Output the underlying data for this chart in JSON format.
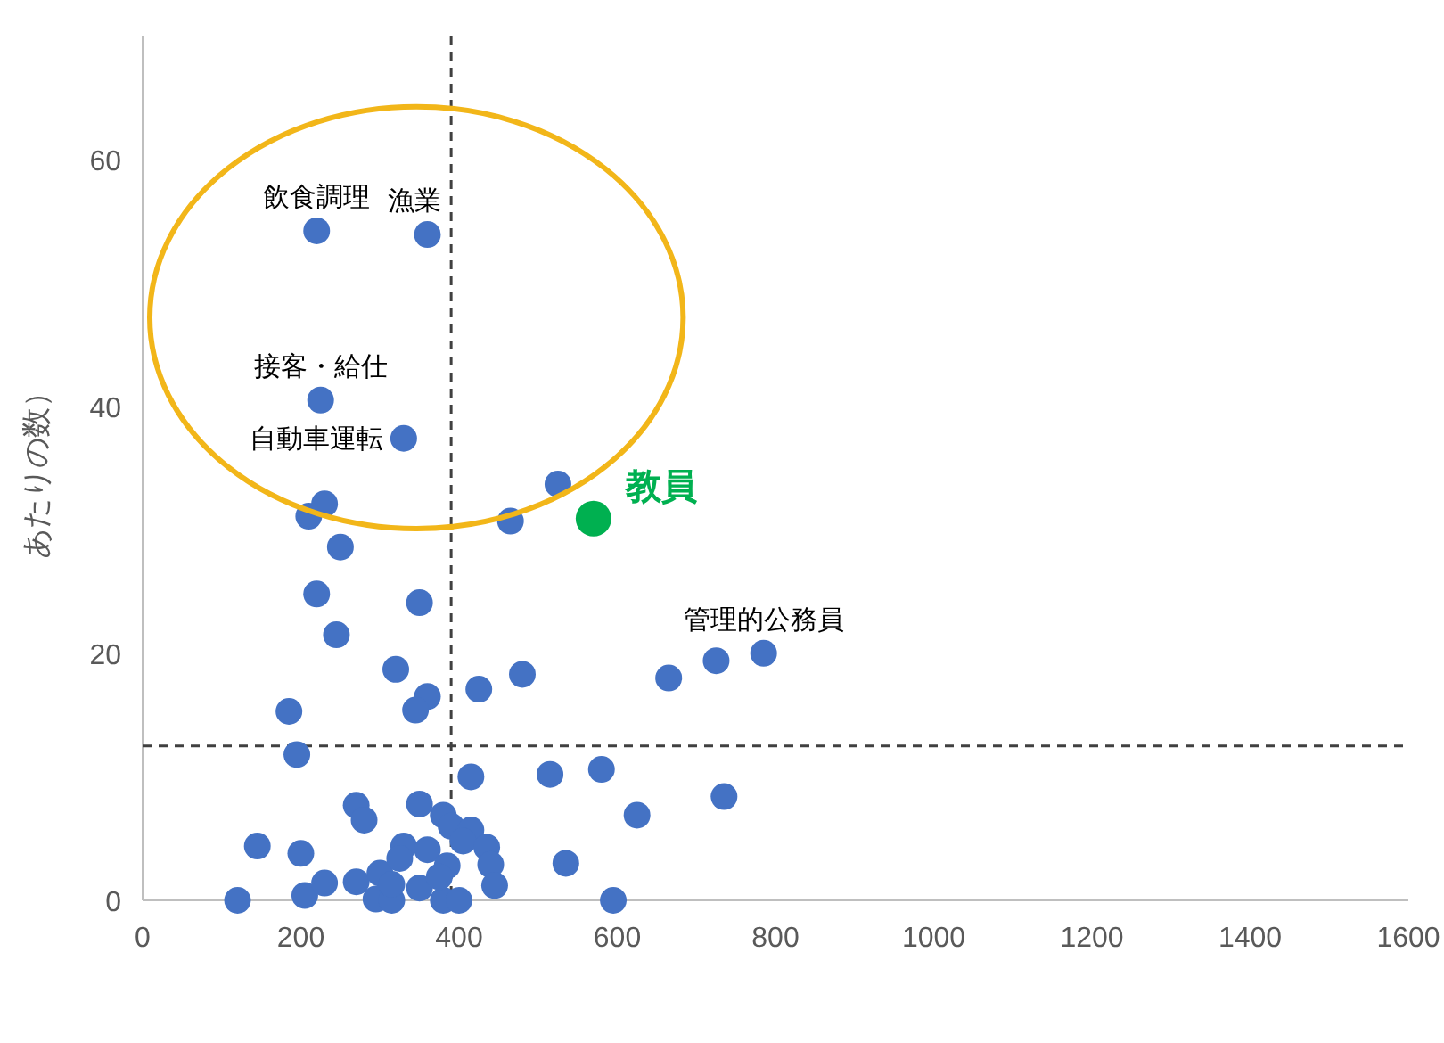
{
  "chart_data": {
    "type": "scatter",
    "ylabel": "あたりの数）",
    "xlim": [
      0,
      1600
    ],
    "ylim": [
      0,
      70
    ],
    "xticks": [
      0,
      200,
      400,
      600,
      800,
      1000,
      1200,
      1400,
      1600
    ],
    "yticks": [
      0,
      20,
      40,
      60
    ],
    "marker": "circle",
    "series": [
      {
        "color": "#4472c4",
        "x": [
          120,
          145,
          200,
          205,
          230,
          270,
          270,
          280,
          300,
          295,
          315,
          315,
          330,
          325,
          350,
          360,
          350,
          380,
          400,
          385,
          380,
          390,
          415,
          405,
          435,
          440,
          445,
          375,
          415,
          220,
          360,
          225,
          330,
          210,
          230,
          250,
          465,
          525,
          220,
          350,
          245,
          320,
          185,
          360,
          345,
          425,
          480,
          665,
          725,
          785,
          195,
          515,
          580,
          625,
          735,
          535,
          595
        ],
        "values": [
          0,
          4.4,
          3.8,
          0.4,
          1.4,
          1.5,
          7.7,
          6.5,
          2.2,
          0.1,
          0,
          1.3,
          4.4,
          3.4,
          7.8,
          4.1,
          1.0,
          0,
          0,
          2.8,
          6.9,
          6.0,
          5.7,
          4.8,
          4.3,
          2.9,
          1.2,
          1.9,
          10.0,
          54.2,
          53.9,
          40.5,
          37.4,
          31.1,
          32.1,
          28.6,
          30.7,
          33.7,
          24.8,
          24.1,
          21.5,
          18.7,
          15.3,
          16.5,
          15.4,
          17.1,
          18.3,
          18.0,
          19.4,
          20.0,
          11.8,
          10.2,
          10.6,
          6.9,
          8.4,
          3.0,
          0
        ]
      },
      {
        "name": "教員",
        "color": "#00b050",
        "x": [
          570
        ],
        "values": [
          30.9
        ]
      }
    ],
    "ref_lines": [
      {
        "axis": "x",
        "value": 390,
        "line_style": "dashed",
        "color": "#404040"
      },
      {
        "axis": "y",
        "value": 12.5,
        "line_style": "dashed",
        "color": "#404040"
      }
    ],
    "annotations": [
      {
        "text": "飲食調理",
        "x": 220,
        "y": 54.2
      },
      {
        "text": "漁業",
        "x": 360,
        "y": 53.9
      },
      {
        "text": "接客・給仕",
        "x": 225,
        "y": 40.5
      },
      {
        "text": "自動車運転",
        "x": 330,
        "y": 37.4
      },
      {
        "text": "管理的公務員",
        "x": 785,
        "y": 20.0
      }
    ]
  }
}
